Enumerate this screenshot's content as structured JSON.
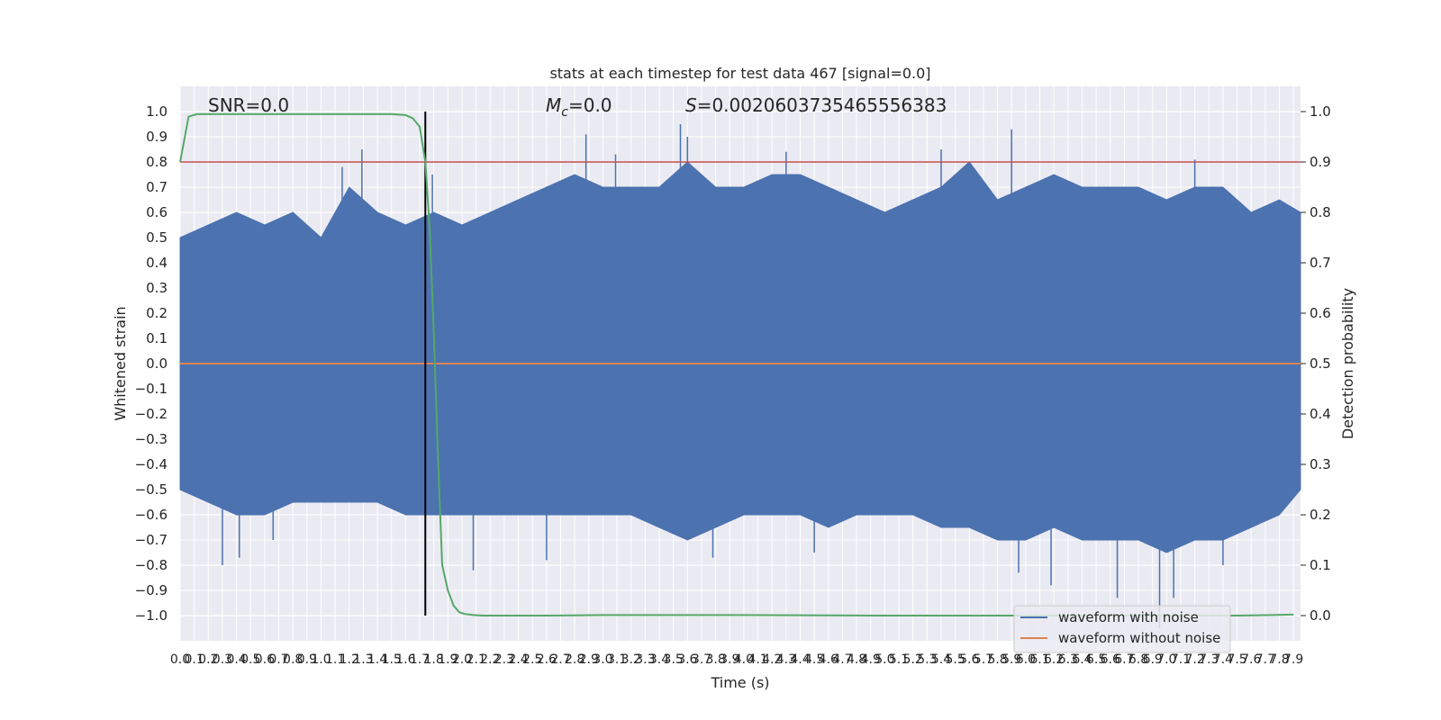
{
  "chart_data": {
    "type": "line",
    "title": "stats at each timestep for test data 467 [signal=0.0]",
    "xlabel": "Time (s)",
    "ylabel": "Whitened strain",
    "ylabel_right": "Detection probability",
    "xlim": [
      0.0,
      7.95
    ],
    "ylim": [
      -1.1,
      1.1
    ],
    "ylim_right": [
      -0.05,
      1.05
    ],
    "x_ticks": [
      "0.0",
      "0.1",
      "0.2",
      "0.3",
      "0.4",
      "0.5",
      "0.6",
      "0.7",
      "0.8",
      "0.9",
      "1.0",
      "1.1",
      "1.2",
      "1.3",
      "1.4",
      "1.5",
      "1.6",
      "1.7",
      "1.8",
      "1.9",
      "2.0",
      "2.1",
      "2.2",
      "2.3",
      "2.4",
      "2.5",
      "2.6",
      "2.7",
      "2.8",
      "2.9",
      "3.0",
      "3.1",
      "3.2",
      "3.3",
      "3.4",
      "3.5",
      "3.6",
      "3.7",
      "3.8",
      "3.9",
      "4.0",
      "4.1",
      "4.2",
      "4.3",
      "4.4",
      "4.5",
      "4.6",
      "4.7",
      "4.8",
      "4.9",
      "5.0",
      "5.1",
      "5.2",
      "5.3",
      "5.4",
      "5.5",
      "5.6",
      "5.7",
      "5.8",
      "5.9",
      "6.0",
      "6.1",
      "6.2",
      "6.3",
      "6.4",
      "6.5",
      "6.6",
      "6.7",
      "6.8",
      "6.9",
      "7.0",
      "7.1",
      "7.2",
      "7.3",
      "7.4",
      "7.5",
      "7.6",
      "7.7",
      "7.8",
      "7.9"
    ],
    "y_ticks": [
      "1.0",
      "0.9",
      "0.8",
      "0.7",
      "0.6",
      "0.5",
      "0.4",
      "0.3",
      "0.2",
      "0.1",
      "0.0",
      "−0.1",
      "−0.2",
      "−0.3",
      "−0.4",
      "−0.5",
      "−0.6",
      "−0.7",
      "−0.8",
      "−0.9",
      "−1.0"
    ],
    "y_right_ticks": [
      "1.0",
      "0.9",
      "0.8",
      "0.7",
      "0.6",
      "0.5",
      "0.4",
      "0.3",
      "0.2",
      "0.1",
      "0.0"
    ],
    "annotations": {
      "snr": "SNR=0.0",
      "mc": "M",
      "mc_sub": "c",
      "mc_value": "=0.0",
      "s": "S",
      "s_value": "=0.0020603735465556383"
    },
    "threshold": {
      "value": 0.9,
      "color": "#c44e52"
    },
    "vertical_marker": {
      "x": 1.74,
      "color": "#000000"
    },
    "series": [
      {
        "name": "waveform with noise",
        "color": "#4c72b0",
        "envelope_x": [
          0.0,
          0.2,
          0.4,
          0.6,
          0.8,
          1.0,
          1.2,
          1.4,
          1.6,
          1.8,
          2.0,
          2.2,
          2.4,
          2.6,
          2.8,
          3.0,
          3.2,
          3.4,
          3.6,
          3.8,
          4.0,
          4.2,
          4.4,
          4.6,
          4.8,
          5.0,
          5.2,
          5.4,
          5.6,
          5.8,
          6.0,
          6.2,
          6.4,
          6.6,
          6.8,
          7.0,
          7.2,
          7.4,
          7.6,
          7.8,
          7.95
        ],
        "upper": [
          0.5,
          0.55,
          0.6,
          0.55,
          0.6,
          0.5,
          0.7,
          0.6,
          0.55,
          0.6,
          0.55,
          0.6,
          0.65,
          0.7,
          0.75,
          0.7,
          0.7,
          0.7,
          0.8,
          0.7,
          0.7,
          0.75,
          0.75,
          0.7,
          0.65,
          0.6,
          0.65,
          0.7,
          0.8,
          0.65,
          0.7,
          0.75,
          0.7,
          0.7,
          0.7,
          0.65,
          0.7,
          0.7,
          0.6,
          0.65,
          0.6
        ],
        "lower": [
          -0.5,
          -0.55,
          -0.6,
          -0.6,
          -0.55,
          -0.55,
          -0.55,
          -0.55,
          -0.6,
          -0.6,
          -0.6,
          -0.6,
          -0.6,
          -0.6,
          -0.6,
          -0.6,
          -0.6,
          -0.65,
          -0.7,
          -0.65,
          -0.6,
          -0.6,
          -0.6,
          -0.65,
          -0.6,
          -0.6,
          -0.6,
          -0.65,
          -0.65,
          -0.7,
          -0.7,
          -0.65,
          -0.7,
          -0.7,
          -0.7,
          -0.75,
          -0.7,
          -0.7,
          -0.65,
          -0.6,
          -0.5
        ],
        "spikes": [
          {
            "x": 0.3,
            "y": -0.8
          },
          {
            "x": 0.42,
            "y": -0.77
          },
          {
            "x": 0.66,
            "y": -0.7
          },
          {
            "x": 1.15,
            "y": 0.78
          },
          {
            "x": 1.29,
            "y": 0.85
          },
          {
            "x": 1.79,
            "y": 0.75
          },
          {
            "x": 2.08,
            "y": -0.82
          },
          {
            "x": 2.6,
            "y": -0.78
          },
          {
            "x": 2.88,
            "y": 0.91
          },
          {
            "x": 3.09,
            "y": 0.83
          },
          {
            "x": 3.55,
            "y": 0.95
          },
          {
            "x": 3.6,
            "y": 0.9
          },
          {
            "x": 3.78,
            "y": -0.77
          },
          {
            "x": 4.3,
            "y": 0.84
          },
          {
            "x": 4.5,
            "y": -0.75
          },
          {
            "x": 5.4,
            "y": 0.85
          },
          {
            "x": 5.9,
            "y": 0.93
          },
          {
            "x": 5.95,
            "y": -0.83
          },
          {
            "x": 6.18,
            "y": -0.88
          },
          {
            "x": 6.65,
            "y": -0.93
          },
          {
            "x": 6.95,
            "y": -1.05
          },
          {
            "x": 7.2,
            "y": 0.81
          },
          {
            "x": 7.4,
            "y": -0.8
          },
          {
            "x": 7.05,
            "y": -0.93
          }
        ]
      },
      {
        "name": "waveform without noise",
        "color": "#dd8452",
        "x": [
          0.0,
          7.95
        ],
        "y": [
          0.0,
          0.0
        ]
      },
      {
        "name": "detection probability",
        "axis": "right",
        "color": "#55a868",
        "x": [
          0.0,
          0.06,
          0.12,
          0.2,
          0.4,
          0.8,
          1.2,
          1.5,
          1.6,
          1.65,
          1.7,
          1.74,
          1.77,
          1.8,
          1.83,
          1.86,
          1.9,
          1.94,
          1.98,
          2.02,
          2.08,
          2.15,
          2.3,
          2.6,
          3.0,
          4.0,
          5.0,
          6.0,
          7.0,
          7.5,
          7.9
        ],
        "y": [
          0.9,
          0.99,
          0.995,
          0.995,
          0.995,
          0.995,
          0.995,
          0.995,
          0.993,
          0.987,
          0.97,
          0.9,
          0.77,
          0.56,
          0.31,
          0.1,
          0.05,
          0.02,
          0.007,
          0.003,
          0.001,
          0.0,
          0.0,
          0.0,
          0.001,
          0.001,
          0.0,
          0.0,
          0.0,
          0.0,
          0.002
        ]
      }
    ],
    "legend": {
      "location": "lower-right",
      "entries": [
        {
          "label": "waveform with noise",
          "color": "#4c72b0"
        },
        {
          "label": "waveform without noise",
          "color": "#dd8452"
        }
      ]
    }
  }
}
